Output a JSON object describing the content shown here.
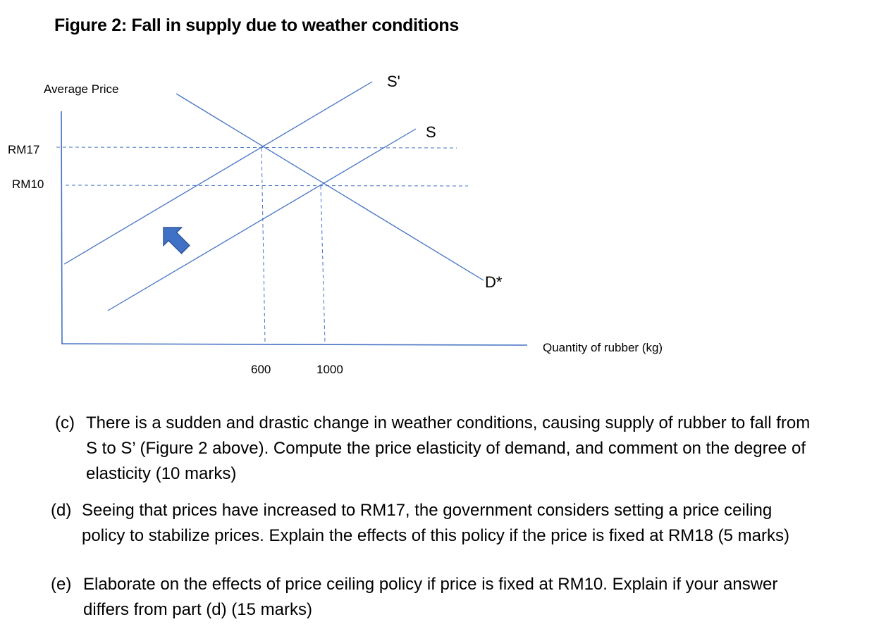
{
  "figure": {
    "title": "Figure 2: Fall in supply due to weather conditions"
  },
  "chart_data": {
    "type": "line",
    "title": "Figure 2: Fall in supply due to weather conditions",
    "ylabel": "Average Price",
    "xlabel": "Quantity of rubber (kg)",
    "y_ticks": [
      "RM17",
      "RM10"
    ],
    "x_ticks": [
      "600",
      "1000"
    ],
    "series": [
      {
        "name": "S'",
        "color": "#4472c4"
      },
      {
        "name": "S",
        "color": "#4472c4"
      },
      {
        "name": "D*",
        "color": "#4472c4"
      }
    ],
    "equilibria": [
      {
        "price": 17,
        "quantity": 600
      },
      {
        "price": 10,
        "quantity": 1000
      }
    ],
    "annotations": [
      "shift-arrow-up-left"
    ],
    "line_color": "#4472c4",
    "arrow_color": "#3f72c6"
  },
  "questions": [
    {
      "letter": "(c)",
      "lines": [
        "There is a sudden and drastic change in weather conditions, causing supply of rubber to fall from",
        "S to S’ (Figure 2 above). Compute the price elasticity of demand, and comment on the degree of",
        "elasticity (10 marks)"
      ]
    },
    {
      "letter": "(d)",
      "lines": [
        "Seeing that prices have increased to RM17, the government considers setting a price ceiling",
        "policy to stabilize prices. Explain the effects of this policy if the price is fixed at RM18 (5 marks)"
      ]
    },
    {
      "letter": "(e)",
      "lines": [
        "Elaborate on the effects of price ceiling policy if price is fixed at RM10. Explain if your answer",
        "differs from part (d) (15 marks)"
      ]
    }
  ]
}
